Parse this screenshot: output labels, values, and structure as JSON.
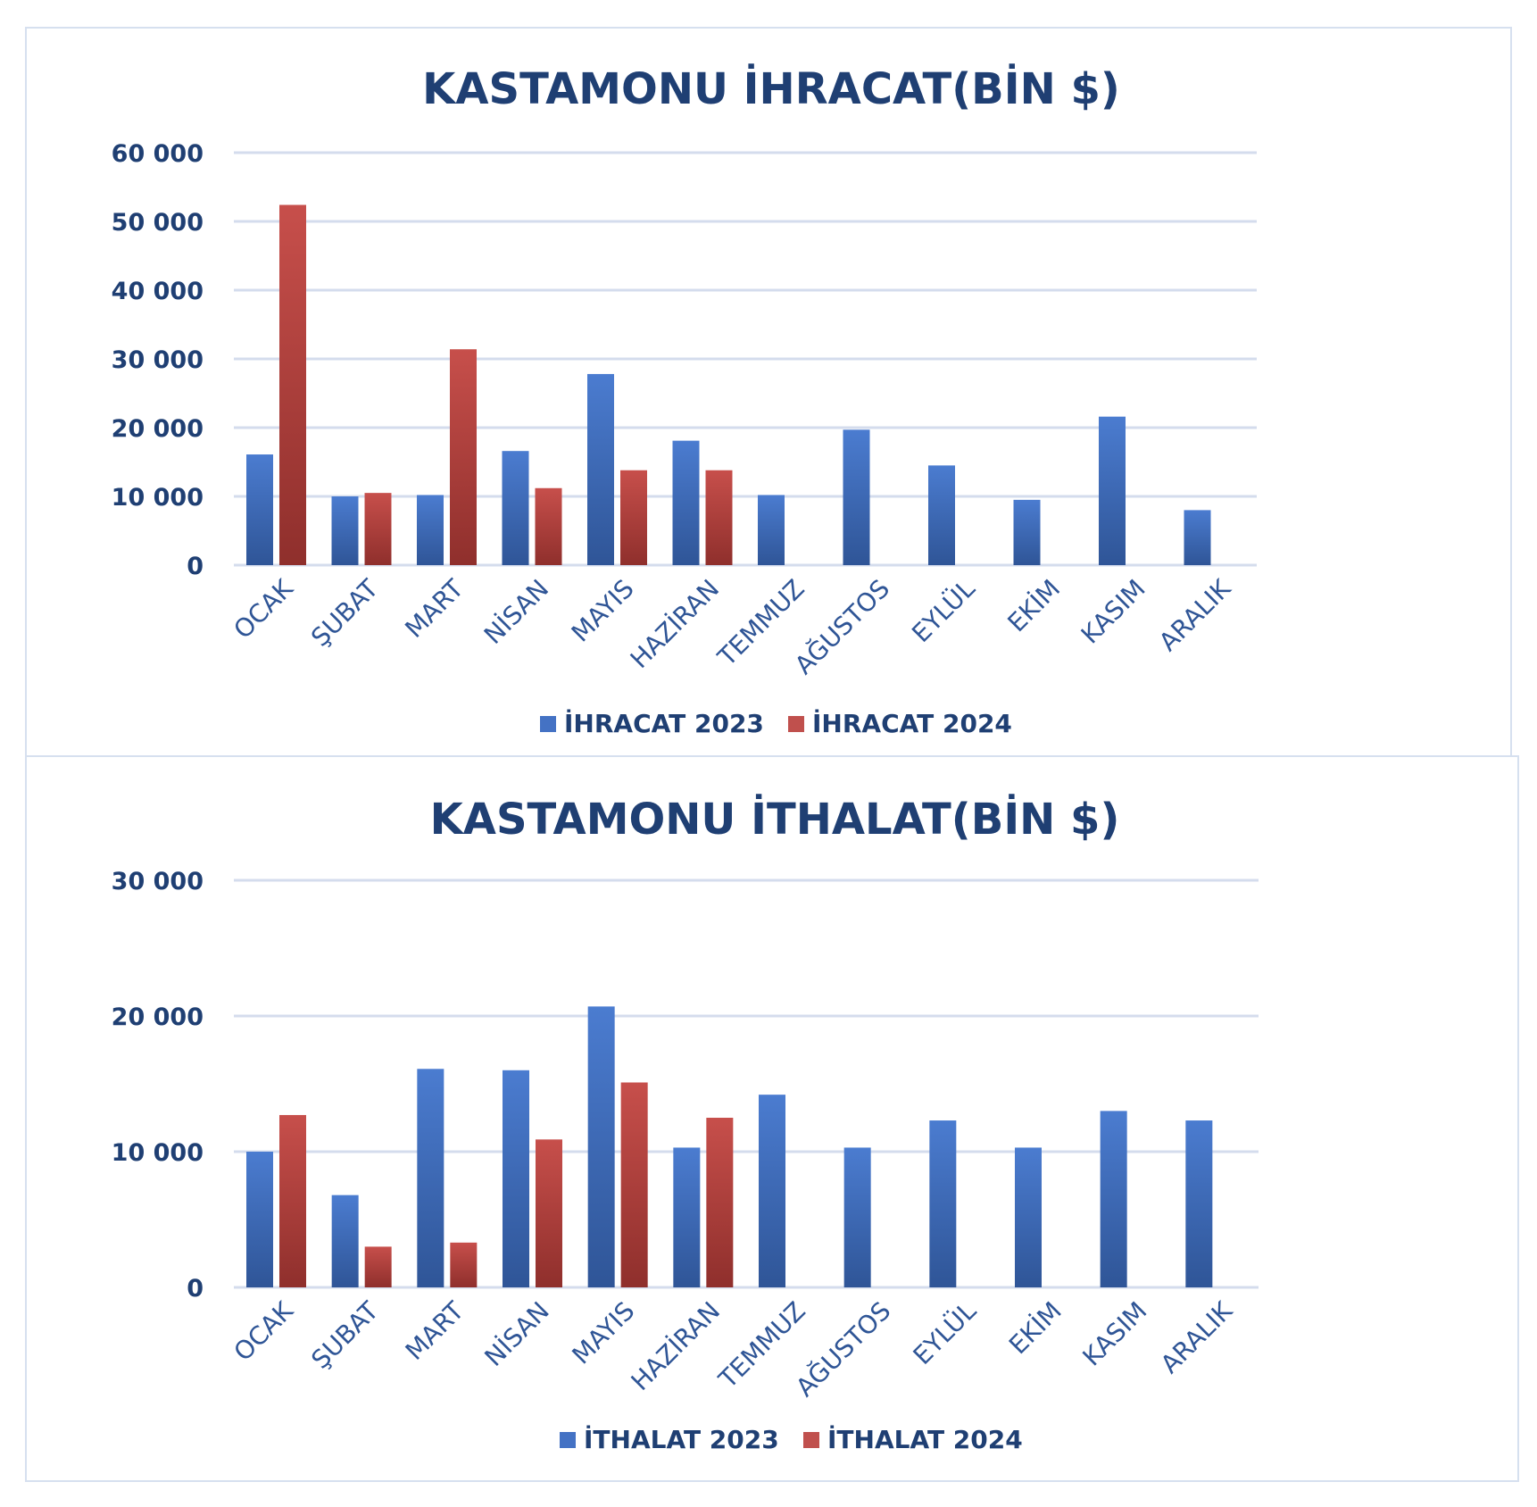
{
  "chart_data": [
    {
      "type": "bar",
      "title": "KASTAMONU İHRACAT(BİN $)",
      "categories": [
        "OCAK",
        "ŞUBAT",
        "MART",
        "NİSAN",
        "MAYIS",
        "HAZİRAN",
        "TEMMUZ",
        "AĞUSTOS",
        "EYLÜL",
        "EKİM",
        "KASIM",
        "ARALIK"
      ],
      "series": [
        {
          "name": "İHRACAT 2023",
          "color": "#4472c4",
          "values": [
            16100,
            10000,
            10200,
            16600,
            27800,
            18100,
            10200,
            19700,
            14500,
            9500,
            21600,
            8000
          ]
        },
        {
          "name": "İHRACAT 2024",
          "color": "#c0504d",
          "values": [
            52400,
            10500,
            31400,
            11200,
            13800,
            13800,
            null,
            null,
            null,
            null,
            null,
            null
          ]
        }
      ],
      "ylim": [
        0,
        60000
      ],
      "yticks": [
        0,
        10000,
        20000,
        30000,
        40000,
        50000,
        60000
      ],
      "ytick_labels": [
        "0",
        "10 000",
        "20 000",
        "30 000",
        "40 000",
        "50 000",
        "60 000"
      ],
      "grid": true,
      "legend": "bottom"
    },
    {
      "type": "bar",
      "title": "KASTAMONU İTHALAT(BİN $)",
      "categories": [
        "OCAK",
        "ŞUBAT",
        "MART",
        "NİSAN",
        "MAYIS",
        "HAZİRAN",
        "TEMMUZ",
        "AĞUSTOS",
        "EYLÜL",
        "EKİM",
        "KASIM",
        "ARALIK"
      ],
      "series": [
        {
          "name": "İTHALAT 2023",
          "color": "#4472c4",
          "values": [
            10000,
            6800,
            16100,
            16000,
            20700,
            10300,
            14200,
            10300,
            12300,
            10300,
            13000,
            12300
          ]
        },
        {
          "name": "İTHALAT 2024",
          "color": "#c0504d",
          "values": [
            12700,
            3000,
            3300,
            10900,
            15100,
            12500,
            null,
            null,
            null,
            null,
            null,
            null
          ]
        }
      ],
      "ylim": [
        0,
        30000
      ],
      "yticks": [
        0,
        10000,
        20000,
        30000
      ],
      "ytick_labels": [
        "0",
        "10 000",
        "20 000",
        "30 000"
      ],
      "grid": true,
      "legend": "bottom"
    }
  ]
}
